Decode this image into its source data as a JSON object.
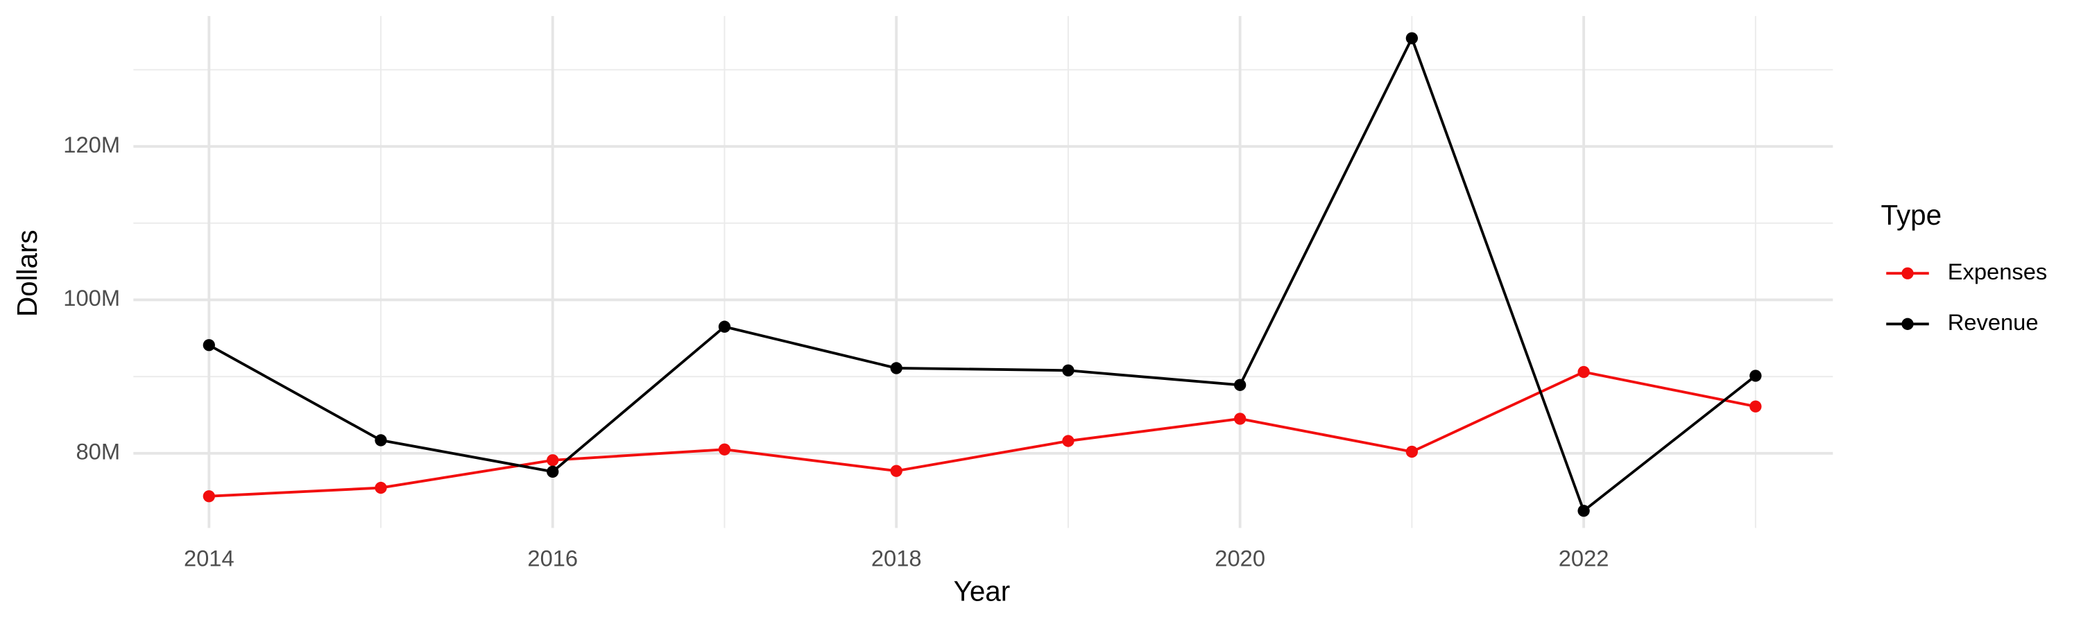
{
  "chart_data": {
    "type": "line",
    "x_label": "Year",
    "y_label": "Dollars",
    "legend_title": "Type",
    "x": [
      2014,
      2015,
      2016,
      2017,
      2018,
      2019,
      2020,
      2021,
      2022,
      2023
    ],
    "series": [
      {
        "name": "Expenses",
        "color": "#f20d0d",
        "values": [
          74400000,
          75500000,
          79100000,
          80500000,
          77700000,
          81600000,
          84500000,
          80200000,
          90600000,
          86100000
        ]
      },
      {
        "name": "Revenue",
        "color": "#000000",
        "values": [
          94100000,
          81700000,
          77600000,
          96500000,
          91100000,
          90800000,
          88900000,
          134100000,
          72500000,
          90100000
        ]
      }
    ],
    "xlim": [
      2013.56,
      2023.45
    ],
    "xticks": [
      2014,
      2016,
      2018,
      2020,
      2022
    ],
    "x_minor_ticks": [
      2015,
      2017,
      2019,
      2021,
      2023
    ],
    "ylim": [
      70260000,
      137000000
    ],
    "yticks": [
      {
        "value": 80000000,
        "label": "80M"
      },
      {
        "value": 100000000,
        "label": "100M"
      },
      {
        "value": 120000000,
        "label": "120M"
      }
    ],
    "y_minor_ticks": [
      70000000,
      90000000,
      110000000,
      130000000
    ],
    "grid": true,
    "legend": "right"
  }
}
